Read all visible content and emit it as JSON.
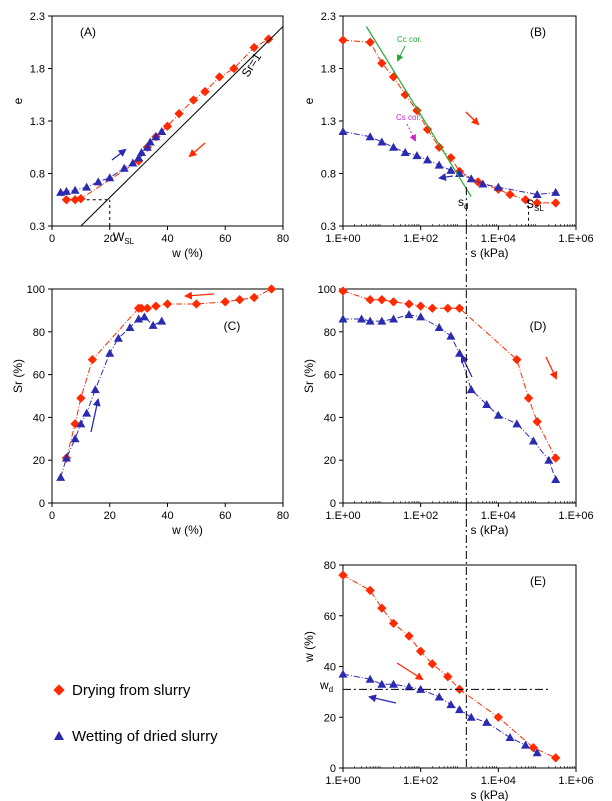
{
  "colors": {
    "drying": "#ff2a00",
    "wetting": "#2b2bb0",
    "axis": "#000000",
    "green": "#22aa33",
    "magenta": "#cc22cc"
  },
  "legend": {
    "drying": "Drying from slurry",
    "wetting": "Wetting of dried slurry"
  },
  "chart_data": [
    {
      "id": "A",
      "panel_label": "(A)",
      "type": "scatter",
      "xlabel": "w (%)",
      "ylabel": "e",
      "xlim": [
        0,
        80
      ],
      "ylim": [
        0.3,
        2.3
      ],
      "xticks": [
        "0",
        "20",
        "40",
        "60",
        "80"
      ],
      "yticks": [
        "0.3",
        "0.8",
        "1.3",
        "1.8",
        "2.3"
      ],
      "series": [
        {
          "name": "Drying from slurry",
          "x": [
            5,
            8,
            10,
            30,
            33,
            36,
            40,
            44,
            49,
            53,
            58,
            63,
            70,
            75
          ],
          "y": [
            0.55,
            0.55,
            0.56,
            0.92,
            1.05,
            1.15,
            1.25,
            1.37,
            1.5,
            1.58,
            1.72,
            1.8,
            2.0,
            2.08
          ]
        },
        {
          "name": "Wetting of dried slurry",
          "x": [
            3,
            5,
            8,
            12,
            16,
            20,
            25,
            28,
            30,
            31,
            33,
            34,
            36,
            38
          ],
          "y": [
            0.62,
            0.63,
            0.64,
            0.67,
            0.72,
            0.76,
            0.85,
            0.9,
            0.95,
            1.0,
            1.05,
            1.1,
            1.15,
            1.2
          ]
        }
      ],
      "annotations": {
        "sr_label": "Sr=1",
        "wsl_label": "W",
        "wsl_sub": "SL"
      }
    },
    {
      "id": "B",
      "panel_label": "(B)",
      "type": "scatter",
      "xscale": "log",
      "xlabel": "s (kPa)",
      "ylabel": "e",
      "xlim": [
        1,
        1000000
      ],
      "ylim": [
        0.3,
        2.3
      ],
      "xticks": [
        "1.E+00",
        "1.E+02",
        "1.E+04",
        "1.E+06"
      ],
      "yticks": [
        "0.3",
        "0.8",
        "1.3",
        "1.8",
        "2.3"
      ],
      "series": [
        {
          "name": "Drying from slurry",
          "x": [
            1,
            5,
            10,
            20,
            40,
            80,
            150,
            300,
            600,
            1000,
            3000,
            10000,
            20000,
            50000,
            100000,
            300000
          ],
          "y": [
            2.07,
            2.05,
            1.85,
            1.72,
            1.55,
            1.4,
            1.22,
            1.05,
            0.95,
            0.82,
            0.72,
            0.65,
            0.6,
            0.55,
            0.52,
            0.52
          ]
        },
        {
          "name": "Wetting of dried slurry",
          "x": [
            1,
            5,
            10,
            20,
            40,
            80,
            150,
            300,
            600,
            1000,
            2000,
            4000,
            10000,
            100000,
            300000
          ],
          "y": [
            1.2,
            1.15,
            1.1,
            1.05,
            1.0,
            0.97,
            0.93,
            0.88,
            0.83,
            0.8,
            0.75,
            0.7,
            0.67,
            0.6,
            0.62
          ]
        }
      ],
      "annotations": {
        "cc": "Cc cor.",
        "cs": "Cs cor.",
        "sd": "s",
        "sd_sub": "d",
        "ssl": "S",
        "ssl_sub": "SL"
      }
    },
    {
      "id": "C",
      "panel_label": "(C)",
      "type": "scatter",
      "xlabel": "w (%)",
      "ylabel": "Sr (%)",
      "xlim": [
        0,
        80
      ],
      "ylim": [
        0,
        100
      ],
      "xticks": [
        "0",
        "20",
        "40",
        "60",
        "80"
      ],
      "yticks": [
        "0",
        "20",
        "40",
        "60",
        "80",
        "100"
      ],
      "series": [
        {
          "name": "Drying from slurry",
          "x": [
            5,
            8,
            10,
            14,
            30,
            31,
            33,
            36,
            40,
            50,
            60,
            65,
            70,
            76
          ],
          "y": [
            21,
            37,
            49,
            67,
            91,
            91,
            91,
            92,
            93,
            93,
            94,
            95,
            96,
            100
          ]
        },
        {
          "name": "Wetting of dried slurry",
          "x": [
            3,
            5,
            8,
            10,
            12,
            15,
            20,
            23,
            27,
            30,
            32,
            35,
            38
          ],
          "y": [
            12,
            21,
            30,
            37,
            42,
            53,
            70,
            77,
            82,
            86,
            87,
            83,
            85
          ]
        }
      ]
    },
    {
      "id": "D",
      "panel_label": "(D)",
      "type": "scatter",
      "xscale": "log",
      "xlabel": "s (kPa)",
      "ylabel": "Sr (%)",
      "xlim": [
        1,
        1000000
      ],
      "ylim": [
        0,
        100
      ],
      "xticks": [
        "1.E+00",
        "1.E+02",
        "1.E+04",
        "1.E+06"
      ],
      "yticks": [
        "0",
        "20",
        "40",
        "60",
        "80",
        "100"
      ],
      "series": [
        {
          "name": "Drying from slurry",
          "x": [
            1,
            5,
            10,
            20,
            50,
            100,
            200,
            500,
            1000,
            30000,
            60000,
            100000,
            300000
          ],
          "y": [
            99,
            95,
            95,
            94,
            93,
            92,
            91,
            91,
            91,
            67,
            49,
            38,
            21
          ]
        },
        {
          "name": "Wetting of dried slurry",
          "x": [
            1,
            3,
            5,
            10,
            20,
            50,
            100,
            300,
            600,
            1000,
            2000,
            5000,
            10000,
            30000,
            80000,
            200000,
            300000
          ],
          "y": [
            86,
            86,
            85,
            85,
            86,
            88,
            87,
            82,
            78,
            70,
            53,
            46,
            41,
            37,
            29,
            20,
            11
          ]
        }
      ]
    },
    {
      "id": "E",
      "panel_label": "(E)",
      "type": "scatter",
      "xscale": "log",
      "xlabel": "s (kPa)",
      "ylabel": "w (%)",
      "xlim": [
        1,
        1000000
      ],
      "ylim": [
        0,
        80
      ],
      "xticks": [
        "1.E+00",
        "1.E+02",
        "1.E+04",
        "1.E+06"
      ],
      "yticks": [
        "0",
        "20",
        "40",
        "60",
        "80"
      ],
      "series": [
        {
          "name": "Drying from slurry",
          "x": [
            1,
            5,
            10,
            20,
            50,
            100,
            200,
            500,
            1000,
            10000,
            80000,
            300000
          ],
          "y": [
            76,
            70,
            63,
            57,
            52,
            46,
            41,
            36,
            31,
            20,
            8,
            4
          ]
        },
        {
          "name": "Wetting of dried slurry",
          "x": [
            1,
            5,
            10,
            20,
            50,
            100,
            300,
            600,
            1000,
            2000,
            5000,
            20000,
            50000,
            100000
          ],
          "y": [
            37,
            35,
            33,
            33,
            32,
            31,
            28,
            25,
            23,
            20,
            18,
            12,
            9,
            6
          ]
        }
      ],
      "annotations": {
        "wd": "w",
        "wd_sub": "d"
      }
    }
  ]
}
